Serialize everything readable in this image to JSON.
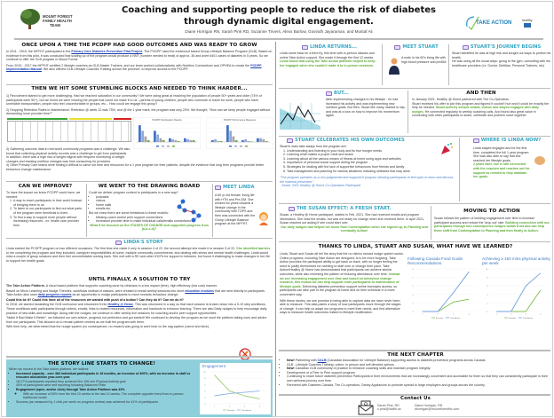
{
  "header": {
    "title_line1": "Coaching and supporting people to reduce the risk of diabetes",
    "title_line2": "through dynamic digital engagement.",
    "authors": "Diane Horrigan RN,  Sarah Pink RD, Suzanne Trivers, Alexx Barlow, Govindh Jayaraman, and Mustaf Ali",
    "left_logo": "MOUNT FOREST FAMILY HEALTH TEAM",
    "right_logo": "TAKE ACTION healthy"
  },
  "once_upon": {
    "heading": "ONCE UPON A TIME THE PCDPP HAD GOOD OUTCOMES AND WAS READY TO GROW",
    "p1_a": "In 2011 - 2015, the MFFHT participated in the ",
    "p1_link": "Primary Care Diabetes Prevention Pilot Project",
    "p1_b": ". The PCDPP used the evidenced based Group Lifestyle Balance Program (GLB). Based on evidence from this pilot, it was concluded that scaling up of the program would produce a NNT (number needed to treat) of approx. 36 and avert 6401 cases of diabetes in 5 years. So we continue to offer the GLB program in Mount Forest.",
    "p2_a": "From 2015 - 2017 the MFFHT certified 2 lifestyle coaches as GLB Master Trainers, and our team worked collaboratively with Nutrition Connections and OPHEA to create the ",
    "p2_link": "PCDPP Implementation Manual",
    "p2_b": ". We also offered GLB Lifestyle Coaches Training across the province, to improve access to the PCDPP."
  },
  "stumbling": {
    "heading": "THEN WE HIT SOME STUMBLING BLOCKS AND NEEDED TO THINK HARDER...",
    "p1": "1) Recruitment started to get more challenging. Had we reached saturation in our community? We were doing great at reaching the population of people 50+ years and older (74% of participants were 50+), but we found we were missing the people that could not make it to us - parents of young children, people who commute or travel for work, people who have unreliable transportation, people who feel uncomfortable in groups, etc... How could we engage this group?",
    "p2": "2) Dropping Retention Rates in Maintenance: Retention @ week 12 was 75%, and @ the 1 year mark, the program was only 20%. We thought, \"How can we keep people engaged without demanding more provider time?\"",
    "p3": "3) Gathering outcome data in real world community programs was a challenge. We also found that collecting physical activity records was a challenge to get from participants. In addition, there was a high risk of weight stigma with frequent monitoring of weight changes and tracking nutrition changes was time consuming for providers.",
    "p4": "4) Other Primary Care teams were finding it difficult to carve out time and resources for a 1 year program for their patients, despite the evidence that long term programs provide better behaviour change maintenance.",
    "table_colors": [
      "#3aa63a",
      "#e8e030",
      "#d82020"
    ]
  },
  "can_improve": {
    "heading": "CAN WE IMPROVE?",
    "intro": "To have the impact we knew PCDPP could have, we needed:",
    "items": [
      "A way to reach participants in their world instead of bringing them to us.",
      "To listen to our participants to find out what parts of the program were beneficial to them.",
      "To find a way to support more people without increasing resources - ex. health care provider time."
    ]
  },
  "drawing_board": {
    "heading": "WE WENT TO THE DRAWING BOARD",
    "intro": "Could we deliver program content to participants in a new way?",
    "options": [
      "podcasts",
      "videos",
      "home calls",
      "emails etc."
    ],
    "limits_intro": "But we knew there are some limitations to these models:",
    "limits": [
      "Missing coach and/or peer support connections",
      "Increased provider time to make individual calls/emails connections"
    ],
    "question": "What if we focused on the STAGES OF CHANGE and supported progress from (a-b-c-d)?"
  },
  "meet_linda": {
    "heading": "MEET LINDA",
    "text": "A 60 yr old female, living life with HTN and Pre-DM. She worked for years towards a lifestyle change in the community with TOPS and then was connected with the Group Lifestyle Balance program at the MFFHT."
  },
  "lindas_story": {
    "heading": "LINDA'S STORY",
    "a": "Linda started the PCDPP program on two different occasions. The first time she made it only to session 4 of 22, the second attempt she made it to session 5 of 22. ",
    "b": "She identified barriers",
    "c": " to her completing the program and they included: caregiver responsibilities at home, multiple community commitments, and dealing with stress and mental health challenges. Linda would miss a couple of group sessions and then feel uncomfortable coming back. She met with a RD and other IHCPs for support in between, but found it challenging to make changes in her life to support her health goals."
  },
  "solution": {
    "heading": "UNTIL FINALLY, A SOLUTION TO TRY",
    "platform_label": "The Take Action Platform.",
    "platform_text": " A cloud based platform that supports coaching done by clinicians in a low impact (time), high efficiency (low cost) manner.",
    "p2_a": "Based on Micro Learning and Nudge Theories, workflows instead of classes, were created to break weekly sessions into short ",
    "p2_link1": "education modules",
    "p2_b": " that are sent directly to participants. Take Action also uses ",
    "p2_link2": "daily progress reports",
    "p2_c": " as an opportunity to nudge participants to move towards behaviour change.",
    "question": "Could this be it? Could this have all of the resources we wanted with push of a button? Can they do it? Can we do it?",
    "p3_a": "In 2018, we started translating the GLB curriculum and structured it into ",
    "p3_link": "Healthy @ Home",
    "p3_b": ". This was structured in a way so that each session is broken down into a 5-10 step workflows. These workflows walk participants through videos, emails, links to related resources, information and handouts to enhance learning. There are also Daily nudges to help encourage daily practice of new skills and knowledge. Along with the nudges, we continue to offer weekly live sessions for coaching and/or peer support opportunities.",
    "p4": "\"Make It Bad Make It Better\", we followed our own advice, progress not perfection and got started! We continued to develop the program as we used the platform taking cues and advice from our participants. This allowed us to remain patient centred as we built the program with them.",
    "p5": "With their help, we determined that the nudge system (no consequence, no reward) was going to work best vs the nag system (carrot and stick)."
  },
  "story_line": {
    "heading": "THE STORY LINE STARTS TO CHANGE!",
    "intro": "When we moved to the Take Action platform, we noticed:",
    "b1": "Increased capacity - over 384 individual participants in 18 months, an increase of 400%, with no increase in staff or resource allocations year-over-year",
    "b2": "18-27% participants reported they achieved the 150 min Physical Activity goal",
    "b3": "45% of participants were self reporting following Balanced Plate",
    "b4": "Engagement (open, and/or click) through Take Action Platform was 43%",
    "b4_sub": "With an increase of 50% from the first 10 weeks to the last 10 weeks. The complete opposite trend from in-person traditional model.",
    "b5": "Success (as measured by 1 click per week on progress review) was achieved for 41% of participants",
    "bg": "#8fcfdc"
  },
  "linda_returns": {
    "heading": "LINDA RETURNS...",
    "text": "Linda came back for a third try, this time with in-person classes and online Take Action support. She made it through the first 12 weeks.",
    "green": "Linda found that using the Take Action platform helped to keep her engaged when she couldn't make it to in person sessions."
  },
  "meet_stuart": {
    "heading": "MEET STUART",
    "text": "A male in his 60's living life with high blood pressure and preDM."
  },
  "stuart_journey": {
    "heading": "STUART'S JOURNEY BEGINS",
    "p1": "Stuart identified he was at high risk and sought out ways to protect his health.",
    "p2": "He was using all the usual ways: going to the gym, consulting with his healthcare providers (i.e. Doctor, Dietitian, Personal Trainers, etc)"
  },
  "but": {
    "heading": "BUT...",
    "text": "After implementing changes to his lifestyle - he had increased his activity and was implementing new nutrition goals. But then, Stuart like many, started to slip, and was at a loss on how to improve his momentum again."
  },
  "and_then": {
    "heading": "AND THEN",
    "p1": "In January 2021, Healthy @ Home partnered with The Co-Operators.",
    "p2_a": "Stuart received his offer to join this program and figured it couldn't hurt and it could be exactly the help he needed. ",
    "p2_green": "Stuart actively viewed emails, videos and stayed engaged with daily nudges.",
    "p2_b": " He connected regularly to weekly coaching calls. And found also great value in connecting with other participants to share, celebrate and problem solve together."
  },
  "stuart_celebrates": {
    "heading": "STUART CELEBRATES HIS OWN OUTCOMES",
    "intro": "Stuart's main take aways from the program are:",
    "items": [
      "Understanding and listening to your body and its true hunger needs",
      "Learning what makes a proper meal and snack",
      "Learning about all the various means of fitness at home using apps and websites",
      "Importance of personal social support during the program",
      "Strategies for dealing with the lack of supportive behaviours from friends and family",
      "Task management and planning for various situations including setbacks that may arise"
    ],
    "quote": "\"The program operates as a non-judgmental and supportive program allowing participants to feel open to learn and discuss the material presented.\"",
    "quote_by": "- Stuart, 2021 Healthy @ Home Co-Operators Participant"
  },
  "linda_now": {
    "heading": "WHERE IS LINDA NOW?",
    "text": "Linda stayed engaged and for the first time, completed the full 1 year program. She was also able to say that she reached her lifestyle goals.",
    "green": "2 years later, she is still connected with the coaches and reaches out for support as needed to help maintain her goals."
  },
  "susan": {
    "heading": "THE SUSAN EFFECT: A FRESH START.",
    "text": "Susan, a Healthy @ Home participant, started in Feb. 2021. She had received emails and program information. She read the emails, but was not ready for change when she received them. In April 2021, Susan reached out asking if she could start over.",
    "green": "Our daily nudges had helped her move from Contemplation when she signed up, to Planning and eventually Action!"
  },
  "moving": {
    "heading": "MOVING TO ACTION",
    "text": "Susan follows the pattern of building engagement over time to increase participant success and reduce the 'drop out' rate. ",
    "green": "Building connection with our participants through non-consequence nudges builds trust and can help them shift from Contemplation to Planning and then finally to Action."
  },
  "learned": {
    "heading": "THANKS TO LINDA, STUART AND SUSAN, WHAT HAVE WE LEARNED?",
    "p1": "Linda, Stuart and Susan all tell the story that the no risk/no reward nudge system works. Online programs, including Take Action are designed, is to be more forgiving. Take Action provides the participant ability to get back on track, with no longer feeling the need to justify themselves for needing to start over or change their pace. Take Action/Healthy @ Home has demonstrated that participants can achieve similar outcomes, while also reversing the pattern of reducing attendance over time. ",
    "p1_green": "Instead we see increasing engagement over time and based on behaviour change research, this means we can help support more participants to maintenance of lifestyle goals.",
    "p1_b": " Delivering diabetes prevention support online increases access, so participants can take part in the program at home and on their schedule in a more convenient way.",
    "p2": "With these stories, we see promise in being able to capture data we have never been able to measure. This data paints a story of how participants move through the stages of change. It can help us adapt our programs to meet their needs, and find alternative ways to measure health outcomes related to lifestyle modification."
  },
  "next_chapter": {
    "heading": "THE NEXT CHAPTER",
    "items": [
      {
        "new": "New!",
        "a": " Partnering with ",
        "link": "CALB",
        "b": " (Canadian Association for Lifestyle Balance) supporting access to diabetes prevention programs across Canada"
      },
      {
        "new": "",
        "a": "GLB - Lifestyle Coaches Training: online, in person and self directed options",
        "link": "",
        "b": ""
      },
      {
        "new": "New!",
        "a": " Canadian GLB community of practice to enhance coaching skills and maintain program integrity",
        "link": "",
        "b": ""
      },
      {
        "new": "",
        "a": "Development of a Peer to Peer support program",
        "link": "",
        "b": ""
      },
      {
        "new": "",
        "a": "Continuing to reach future diabetes prevention Participants in their environments that are increasingly convenient and accessible for them so that they can consistently participate in their own wellness journey over time.",
        "link": "",
        "b": ""
      },
      {
        "new": "",
        "a": "Partnered with Diabetes Canada, The Co-operators, Danby Appliances to promote spread to large employers and groups across the country",
        "link": "",
        "b": ""
      }
    ]
  },
  "contact": {
    "heading": "Contact Us",
    "c1_name": "Sarah Pink, RD",
    "c1_email": "s.pink@ldaffn.ca",
    "c2_name": "Diane Horrigan, RN",
    "c2_email": "dhorrigan@mountforestfhc.com"
  },
  "chart_data": [
    {
      "type": "bar",
      "title": "PCDPP Participation Results",
      "categories": [
        "A",
        "B",
        "C",
        "D"
      ],
      "series": [
        {
          "values": [
            9,
            6,
            2,
            2
          ]
        },
        {
          "values": [
            6,
            4,
            1.5,
            1.5
          ]
        },
        {
          "values": [
            3,
            2,
            1,
            1
          ]
        },
        {
          "values": [
            1,
            1,
            0.5,
            1
          ]
        }
      ],
      "colors": [
        "#4472c4",
        "#8faadc",
        "#a5a5a5",
        "#70ad47"
      ]
    },
    {
      "type": "bar",
      "title": "PCDPP Performance Measures",
      "categories": [
        "A",
        "B",
        "C",
        "D"
      ],
      "series": [
        {
          "values": [
            1,
            9,
            1,
            2
          ]
        },
        {
          "values": [
            1.5,
            6,
            1.5,
            2
          ]
        },
        {
          "values": [
            0.5,
            3,
            0.5,
            1.5
          ]
        },
        {
          "values": [
            0.5,
            1,
            0.3,
            0.5
          ]
        }
      ],
      "colors": [
        "#4472c4",
        "#8faadc",
        "#a5a5a5",
        "#70ad47"
      ]
    },
    {
      "type": "line",
      "title": "Following Canada Food Guide Recommendations",
      "categories": [
        "1",
        "2",
        "3",
        "4"
      ],
      "series": [
        {
          "name": "Baseline",
          "values": [
            0,
            0,
            2,
            2.6
          ],
          "color": "#7fbf4d"
        },
        {
          "name": "Take Action",
          "values": [
            0,
            0,
            4,
            8.4
          ],
          "color": "#6ea1dc"
        }
      ],
      "ylim": [
        0,
        9
      ]
    },
    {
      "type": "line",
      "title": "Achieving ≥ 150 mins physical activity per week",
      "categories": [
        "1",
        "2",
        "3",
        "4"
      ],
      "series": [
        {
          "name": "Baseline",
          "values": [
            0,
            0,
            0,
            5
          ],
          "color": "#7fbf4d"
        },
        {
          "name": "Take Action",
          "values": [
            0,
            0,
            6,
            9
          ],
          "color": "#6ea1dc"
        }
      ],
      "ylim": [
        0,
        10
      ]
    },
    {
      "type": "line",
      "title": "Engagement",
      "categories": [
        "1",
        "2",
        "3",
        "4"
      ],
      "series": [
        {
          "name": "Baseline",
          "values": [
            9,
            4,
            2.5,
            1.5
          ],
          "color": "#9bcc6f"
        },
        {
          "name": "Take Action",
          "values": [
            2.5,
            3.2,
            3.6,
            4
          ],
          "color": "#8eb4e3"
        }
      ],
      "ylim": [
        0,
        10
      ]
    }
  ]
}
